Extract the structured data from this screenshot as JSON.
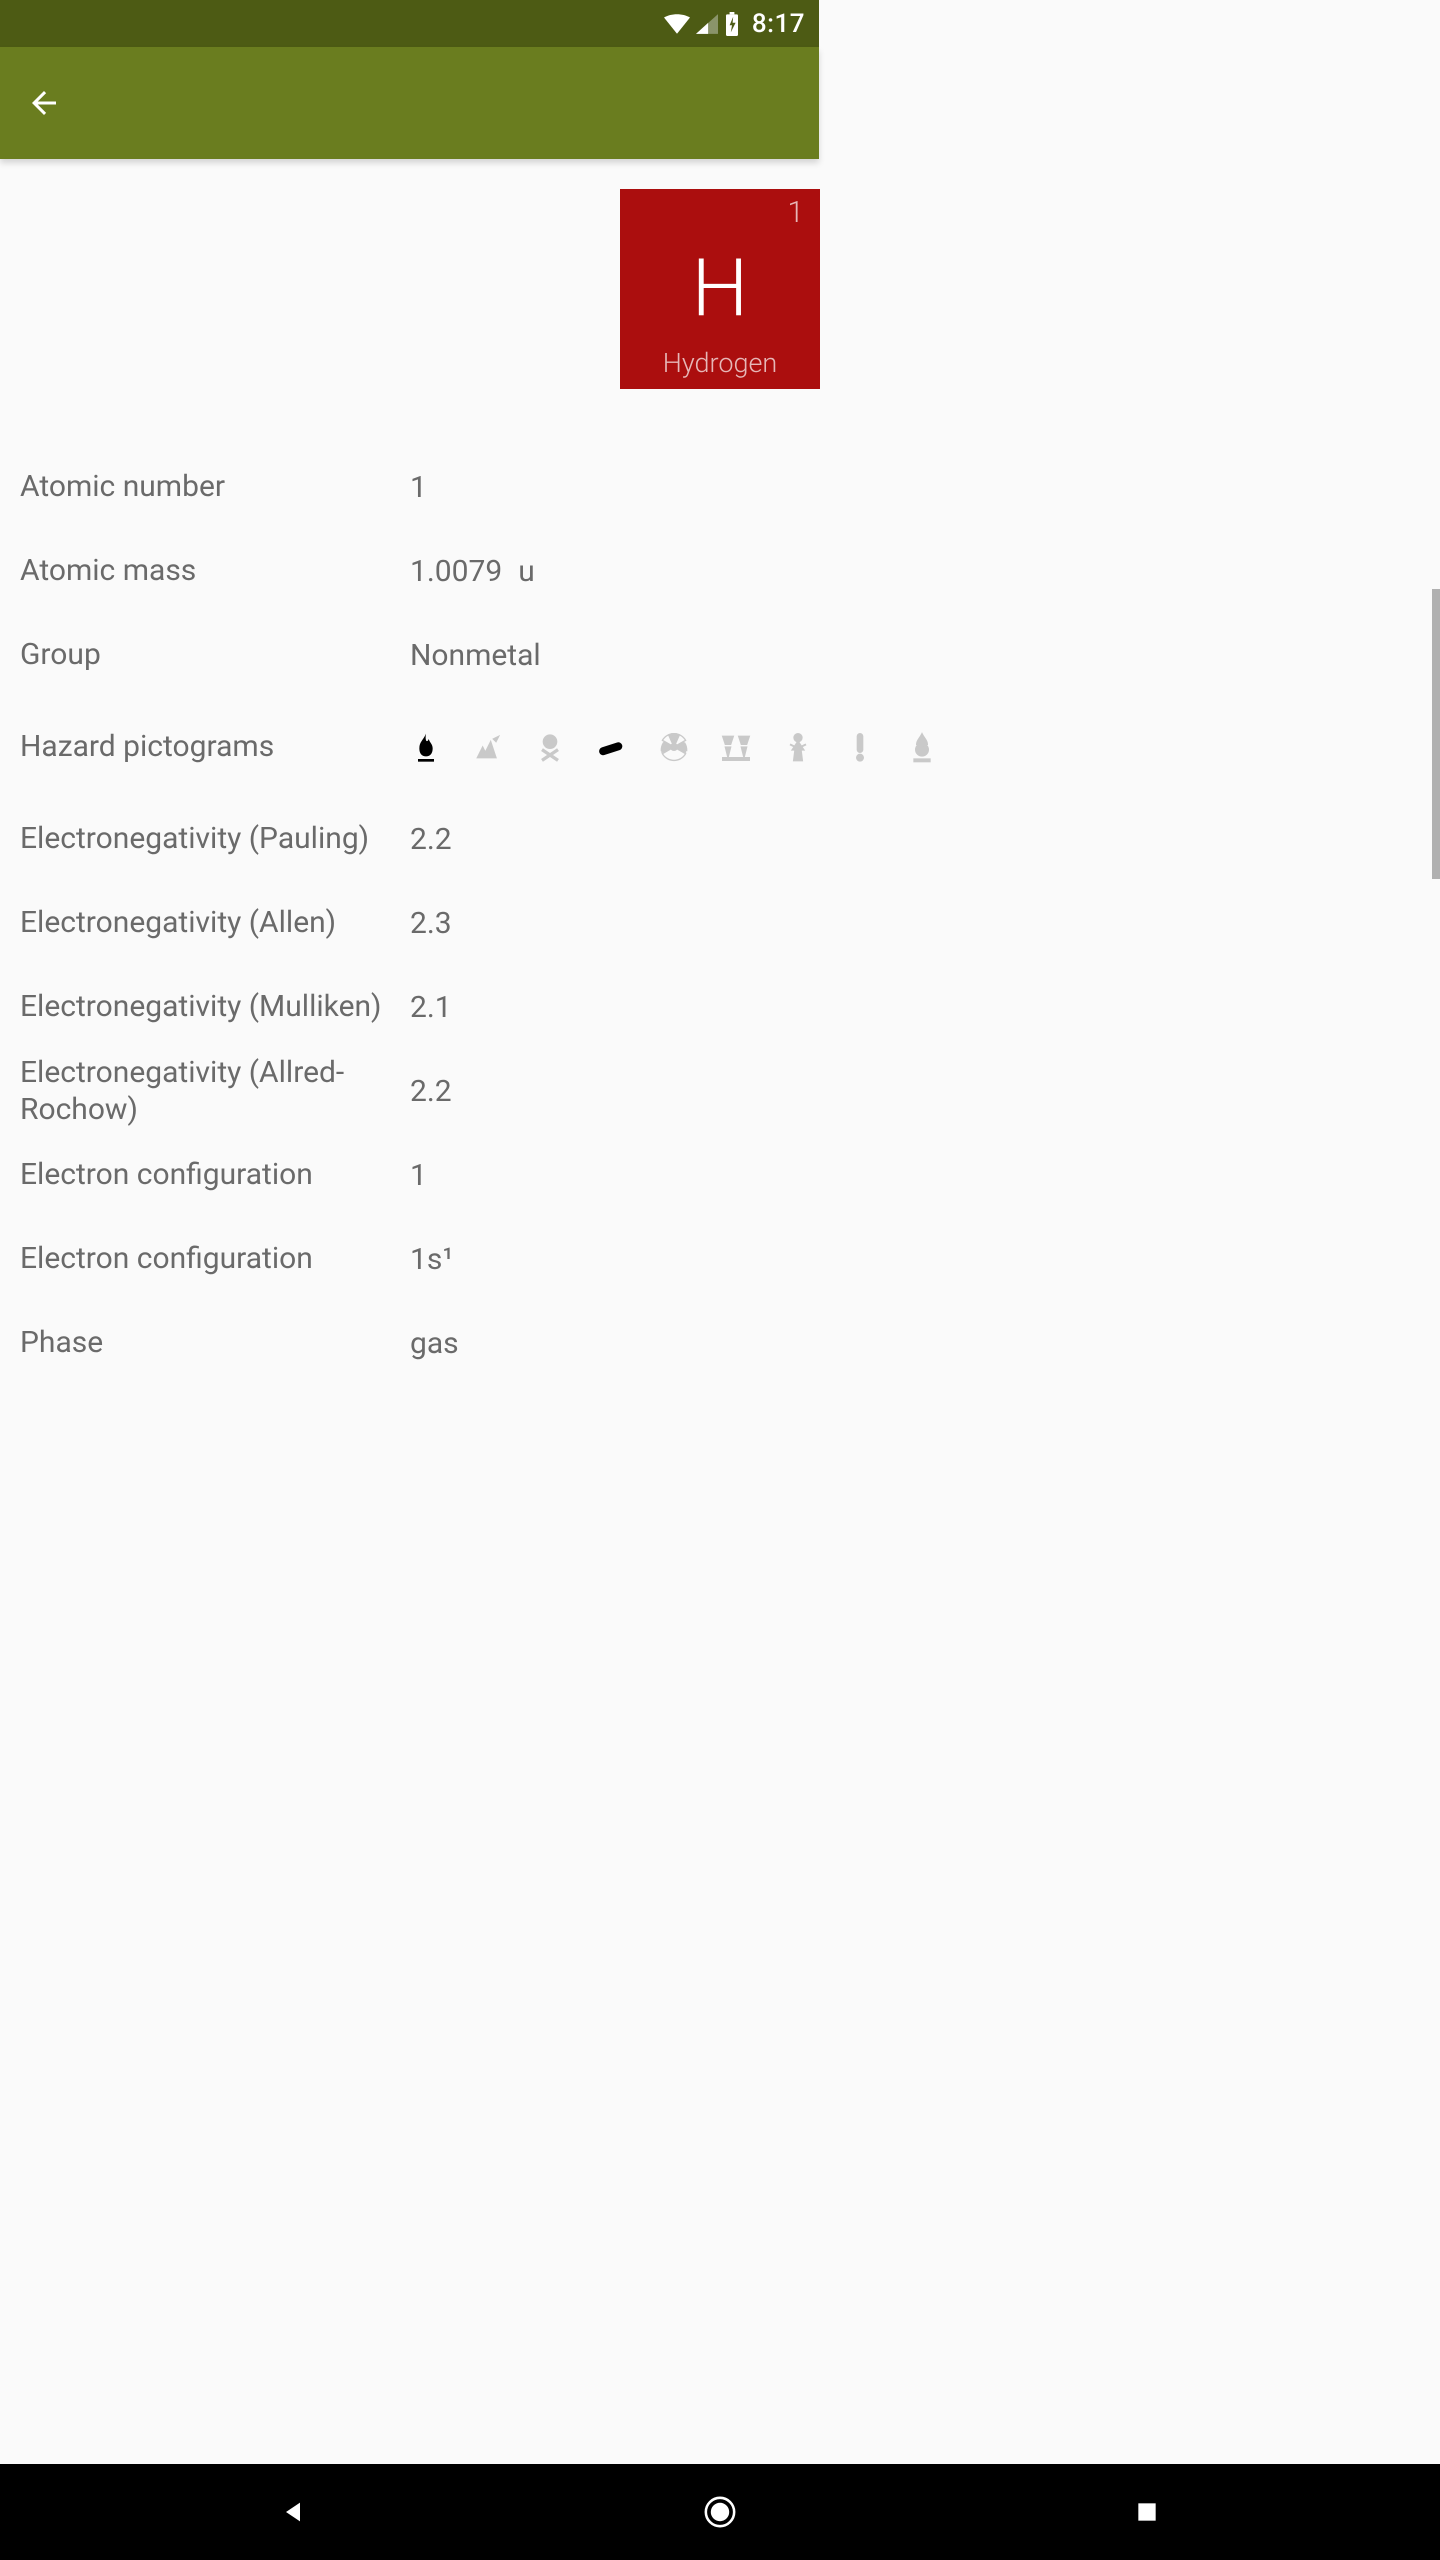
{
  "status": {
    "time": "8:17"
  },
  "element": {
    "tile": {
      "number": "1",
      "symbol": "H",
      "name": "Hydrogen",
      "bg_color": "#ab0e0e"
    },
    "props": {
      "atomic_number": {
        "label": "Atomic number",
        "value": "1"
      },
      "atomic_mass": {
        "label": "Atomic mass",
        "value": "1.0079",
        "unit": "u"
      },
      "group": {
        "label": "Group",
        "value": "Nonmetal"
      },
      "hazard": {
        "label": "Hazard pictograms"
      },
      "en_pauling": {
        "label": "Electronegativity (Pauling)",
        "value": "2.2"
      },
      "en_allen": {
        "label": "Electronegativity (Allen)",
        "value": "2.3"
      },
      "en_mulliken": {
        "label": "Electronegativity (Mulliken)",
        "value": "2.1"
      },
      "en_allred": {
        "label": "Electronegativity (Allred-Rochow)",
        "value": "2.2"
      },
      "econf1": {
        "label": "Electron configuration",
        "value": "1"
      },
      "econf2": {
        "label": "Electron configuration",
        "value_html": "1s¹"
      },
      "phase": {
        "label": "Phase",
        "value": "gas"
      }
    },
    "hazards": [
      {
        "name": "flammable",
        "active": true
      },
      {
        "name": "environment",
        "active": false
      },
      {
        "name": "toxic",
        "active": false
      },
      {
        "name": "gas-cylinder",
        "active": true
      },
      {
        "name": "radioactive",
        "active": false
      },
      {
        "name": "corrosive",
        "active": false
      },
      {
        "name": "health-hazard",
        "active": false
      },
      {
        "name": "irritant",
        "active": false
      },
      {
        "name": "oxidizer",
        "active": false
      }
    ]
  },
  "colors": {
    "status_bar": "#4d5b14",
    "app_bar": "#6a7d1f",
    "background": "#fafafa",
    "text": "#6a6a6a",
    "tile_bg": "#ab0e0e",
    "inactive_icon": "#c9c9c9",
    "active_icon": "#000000"
  }
}
